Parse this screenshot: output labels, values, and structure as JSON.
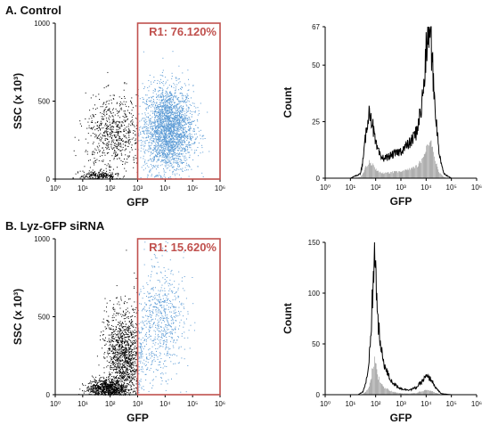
{
  "sections": [
    {
      "label": "A.  Control"
    },
    {
      "label": "B. Lyz-GFP siRNA"
    }
  ],
  "colors": {
    "gate": "#c0504d",
    "gated_dots": "#5b9bd5",
    "ungated_dots": "#000000",
    "histogram": "#000000"
  },
  "chart_data": [
    {
      "type": "scatter",
      "panel": "A. Control",
      "xlabel": "GFP",
      "ylabel": "SSC (x 10³)",
      "x_scale": "log",
      "xlim": [
        1,
        1000000
      ],
      "ylim": [
        0,
        1000
      ],
      "x_ticks": [
        "10⁰",
        "10¹",
        "10²",
        "10³",
        "10⁴",
        "10⁵",
        "10⁶"
      ],
      "y_ticks": [
        "0",
        "500",
        "1000"
      ],
      "gate": {
        "name": "R1",
        "label": "R1: 76.120%",
        "x_range": [
          1000,
          1000000
        ],
        "y_range": [
          0,
          1000
        ]
      },
      "populations": [
        {
          "name": "gated",
          "center_log_x": 4.1,
          "center_y": 320,
          "spread_log_x": 0.45,
          "spread_y": 140,
          "n": 2600
        },
        {
          "name": "ungated",
          "center_log_x": 2.1,
          "center_y": 290,
          "spread_log_x": 0.5,
          "spread_y": 120,
          "n": 650
        },
        {
          "name": "low",
          "center_log_x": 1.6,
          "center_y": 25,
          "spread_log_x": 0.35,
          "spread_y": 15,
          "n": 220
        }
      ]
    },
    {
      "type": "line",
      "panel": "A. Control",
      "xlabel": "GFP",
      "ylabel": "Count",
      "x_scale": "log",
      "xlim": [
        1,
        1000000
      ],
      "ylim": [
        0,
        67
      ],
      "x_ticks": [
        "10⁰",
        "10¹",
        "10²",
        "10³",
        "10⁴",
        "10⁵",
        "10⁶"
      ],
      "y_ticks": [
        "0",
        "25",
        "50",
        "67"
      ],
      "x": [
        1.0,
        1.2,
        1.4,
        1.5,
        1.6,
        1.7,
        1.8,
        1.9,
        2.0,
        2.1,
        2.2,
        2.4,
        2.6,
        2.8,
        3.0,
        3.2,
        3.4,
        3.6,
        3.8,
        3.9,
        4.0,
        4.1,
        4.2,
        4.3,
        4.5,
        4.7,
        5.0
      ],
      "y": [
        0,
        1,
        2,
        8,
        18,
        28,
        29,
        22,
        15,
        12,
        9,
        9,
        10,
        11,
        12,
        14,
        16,
        20,
        30,
        40,
        55,
        67,
        60,
        40,
        12,
        2,
        0
      ]
    },
    {
      "type": "scatter",
      "panel": "B. Lyz-GFP siRNA",
      "xlabel": "GFP",
      "ylabel": "SSC (x 10³)",
      "x_scale": "log",
      "xlim": [
        1,
        1000000
      ],
      "ylim": [
        0,
        1000
      ],
      "x_ticks": [
        "10⁰",
        "10¹",
        "10²",
        "10³",
        "10⁴",
        "10⁵",
        "10⁶"
      ],
      "y_ticks": [
        "0",
        "500",
        "1000"
      ],
      "gate": {
        "name": "R1",
        "label": "R1: 15.620%",
        "x_range": [
          1000,
          1000000
        ],
        "y_range": [
          0,
          1000
        ]
      },
      "populations": [
        {
          "name": "ungated_low",
          "center_log_x": 1.9,
          "center_y": 40,
          "spread_log_x": 0.35,
          "spread_y": 30,
          "n": 900
        },
        {
          "name": "ungated_diag",
          "center_log_x": 2.5,
          "center_y": 250,
          "spread_log_x": 0.35,
          "spread_y": 150,
          "n": 1300
        },
        {
          "name": "gated",
          "center_log_x": 3.8,
          "center_y": 480,
          "spread_log_x": 0.45,
          "spread_y": 180,
          "n": 700
        }
      ]
    },
    {
      "type": "line",
      "panel": "B. Lyz-GFP siRNA",
      "xlabel": "GFP",
      "ylabel": "Count",
      "x_scale": "log",
      "xlim": [
        1,
        1000000
      ],
      "ylim": [
        0,
        150
      ],
      "x_ticks": [
        "10⁰",
        "10¹",
        "10²",
        "10³",
        "10⁴",
        "10⁵",
        "10⁶"
      ],
      "y_ticks": [
        "0",
        "50",
        "100",
        "150"
      ],
      "x": [
        1.0,
        1.3,
        1.5,
        1.7,
        1.8,
        1.9,
        1.95,
        2.0,
        2.1,
        2.2,
        2.4,
        2.6,
        2.8,
        3.0,
        3.2,
        3.4,
        3.6,
        3.8,
        4.0,
        4.2,
        4.4,
        4.6,
        5.0
      ],
      "y": [
        0,
        0,
        3,
        20,
        55,
        110,
        140,
        120,
        70,
        45,
        25,
        14,
        9,
        6,
        5,
        5,
        7,
        12,
        18,
        15,
        6,
        1,
        0
      ]
    }
  ]
}
